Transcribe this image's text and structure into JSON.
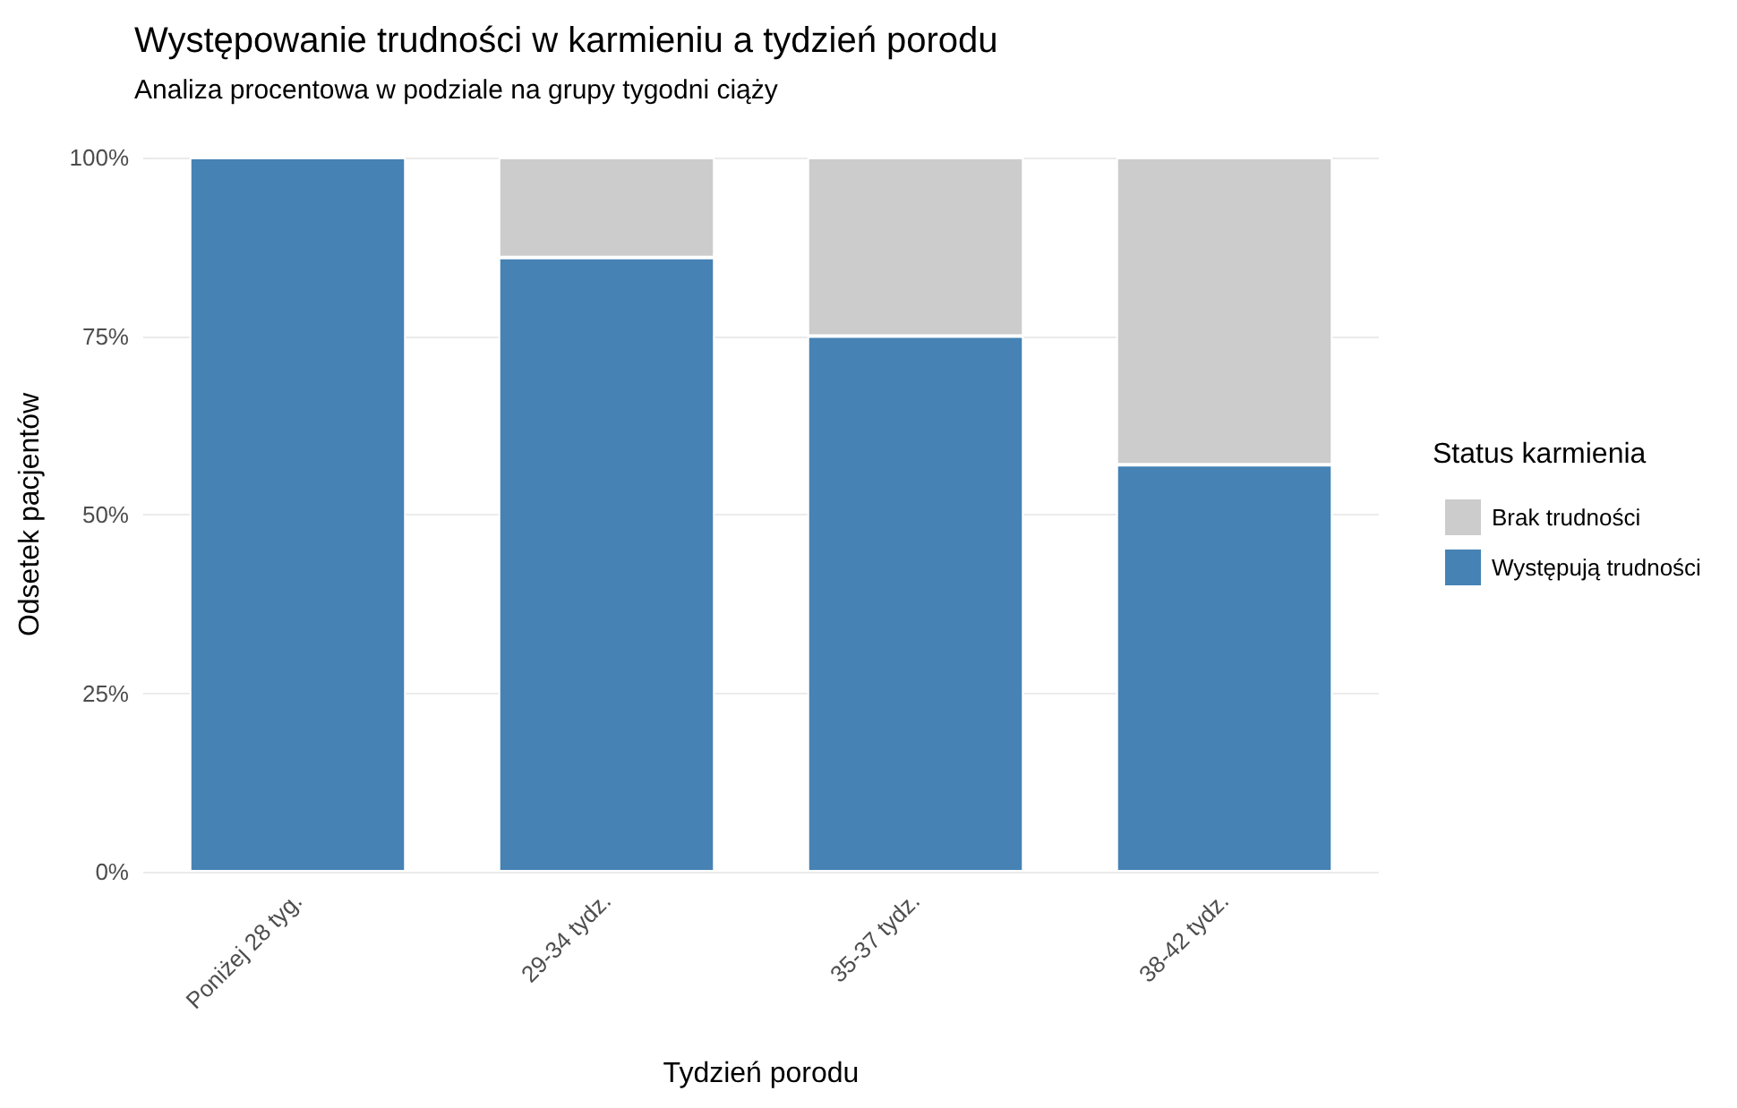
{
  "chart_data": {
    "type": "bar",
    "title": "Występowanie trudności w karmieniu a tydzień porodu",
    "subtitle": "Analiza procentowa w podziale na grupy tygodni ciąży",
    "xlabel": "Tydzień porodu",
    "ylabel": "Odsetek pacjentów",
    "legend_title": "Status karmienia",
    "categories": [
      "Poniżej 28 tyg.",
      "29-34 tydz.",
      "35-37 tydz.",
      "38-42 tydz."
    ],
    "series": [
      {
        "name": "Występują trudności",
        "color": "#4682b4",
        "values": [
          100,
          86,
          75,
          57
        ]
      },
      {
        "name": "Brak trudności",
        "color": "#cccccc",
        "values": [
          0,
          14,
          25,
          43
        ]
      }
    ],
    "stacked": true,
    "ylim": [
      0,
      100
    ],
    "yticks": [
      {
        "value": 0,
        "label": "0%"
      },
      {
        "value": 25,
        "label": "25%"
      },
      {
        "value": 50,
        "label": "50%"
      },
      {
        "value": 75,
        "label": "75%"
      },
      {
        "value": 100,
        "label": "100%"
      }
    ],
    "grid": "y",
    "legend": "right"
  }
}
